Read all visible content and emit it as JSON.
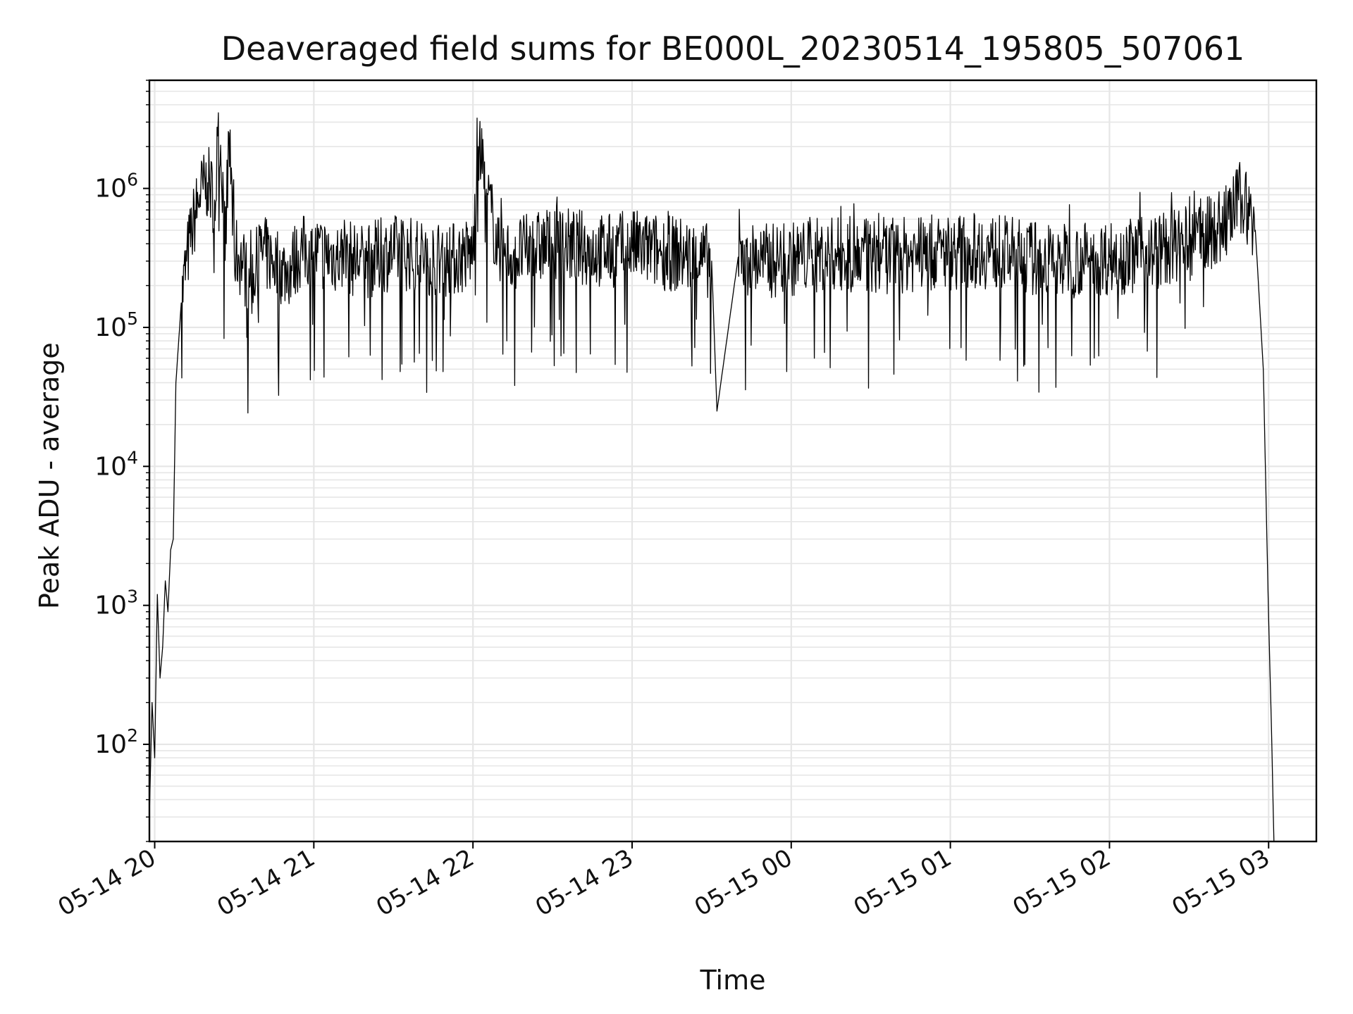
{
  "chart_data": {
    "type": "line",
    "title": "Deaveraged field sums for BE000L_20230514_195805_507061",
    "xlabel": "Time",
    "ylabel": "Peak ADU - average",
    "y_scale": "log",
    "ylim": [
      20,
      6000000
    ],
    "xlim": [
      "2023-05-14 19:58",
      "2023-05-15 03:18"
    ],
    "grid": true,
    "line_color": "#000000",
    "x_ticks": [
      "05-14 20",
      "05-14 21",
      "05-14 22",
      "05-14 23",
      "05-15 00",
      "05-15 01",
      "05-15 02",
      "05-15 03"
    ],
    "x_tick_times": [
      "2023-05-14 20:00",
      "2023-05-14 21:00",
      "2023-05-14 22:00",
      "2023-05-14 23:00",
      "2023-05-15 00:00",
      "2023-05-15 01:00",
      "2023-05-15 02:00",
      "2023-05-15 03:00"
    ],
    "y_ticks": [
      {
        "base": "10",
        "exp": "2",
        "value": 100
      },
      {
        "base": "10",
        "exp": "3",
        "value": 1000
      },
      {
        "base": "10",
        "exp": "4",
        "value": 10000
      },
      {
        "base": "10",
        "exp": "5",
        "value": 100000
      },
      {
        "base": "10",
        "exp": "6",
        "value": 1000000
      }
    ],
    "series": [
      {
        "x": [
          "2023-05-14 19:58",
          "2023-05-14 19:59",
          "2023-05-14 20:00",
          "2023-05-14 20:01",
          "2023-05-14 20:02",
          "2023-05-14 20:03",
          "2023-05-14 20:04",
          "2023-05-14 20:05",
          "2023-05-14 20:06",
          "2023-05-14 20:07",
          "2023-05-14 20:08",
          "2023-05-14 20:10",
          "2023-05-14 20:12",
          "2023-05-14 20:14",
          "2023-05-14 20:17",
          "2023-05-14 20:20",
          "2023-05-14 20:23",
          "2023-05-14 20:24",
          "2023-05-14 20:27",
          "2023-05-14 20:28",
          "2023-05-14 20:30",
          "2023-05-14 20:33",
          "2023-05-14 20:36",
          "2023-05-14 20:40",
          "2023-05-14 20:45",
          "2023-05-14 20:50",
          "2023-05-14 20:55",
          "2023-05-14 21:00",
          "2023-05-14 21:10",
          "2023-05-14 21:20",
          "2023-05-14 21:30",
          "2023-05-14 21:40",
          "2023-05-14 21:50",
          "2023-05-14 22:00",
          "2023-05-14 22:02",
          "2023-05-14 22:10",
          "2023-05-14 22:20",
          "2023-05-14 22:30",
          "2023-05-14 22:40",
          "2023-05-14 22:50",
          "2023-05-14 23:00",
          "2023-05-14 23:10",
          "2023-05-14 23:20",
          "2023-05-14 23:30",
          "2023-05-14 23:32",
          "2023-05-14 23:40",
          "2023-05-14 23:50",
          "2023-05-15 00:00",
          "2023-05-15 00:10",
          "2023-05-15 00:20",
          "2023-05-15 00:30",
          "2023-05-15 00:40",
          "2023-05-15 00:50",
          "2023-05-15 01:00",
          "2023-05-15 01:10",
          "2023-05-15 01:20",
          "2023-05-15 01:30",
          "2023-05-15 01:40",
          "2023-05-15 01:50",
          "2023-05-15 02:00",
          "2023-05-15 02:10",
          "2023-05-15 02:20",
          "2023-05-15 02:30",
          "2023-05-15 02:35",
          "2023-05-15 02:40",
          "2023-05-15 02:45",
          "2023-05-15 02:50",
          "2023-05-15 02:55",
          "2023-05-15 02:58",
          "2023-05-15 03:00",
          "2023-05-15 03:01",
          "2023-05-15 03:02"
        ],
        "y": [
          30,
          200,
          80,
          1200,
          300,
          500,
          1500,
          900,
          2500,
          3000,
          40000,
          150000,
          300000,
          500000,
          900000,
          1100000,
          800000,
          3500000,
          400000,
          2500000,
          350000,
          300000,
          200000,
          350000,
          300000,
          250000,
          350000,
          350000,
          320000,
          300000,
          350000,
          330000,
          300000,
          340000,
          2000000,
          320000,
          350000,
          400000,
          380000,
          350000,
          380000,
          350000,
          330000,
          300000,
          25000,
          320000,
          300000,
          310000,
          330000,
          340000,
          320000,
          330000,
          340000,
          350000,
          360000,
          340000,
          320000,
          300000,
          310000,
          320000,
          330000,
          360000,
          400000,
          450000,
          500000,
          600000,
          900000,
          500000,
          50000,
          800,
          150,
          20
        ]
      }
    ]
  }
}
